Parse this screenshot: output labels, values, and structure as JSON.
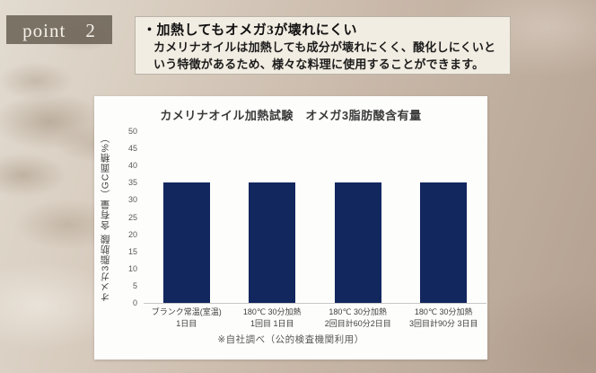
{
  "badge": {
    "label": "point　2"
  },
  "header": {
    "heading": "・加熱してもオメガ3が壊れにくい",
    "body": "カメリナオイルは加熱しても成分が壊れにくく、酸化しにくいという特徴があるため、様々な料理に使用することができます。"
  },
  "chart_data": {
    "type": "bar",
    "title": "カメリナオイル加熱試験　オメガ3脂肪酸含有量",
    "categories": [
      "ブランク常温(室温)\n1日目",
      "180℃ 30分加熱\n1回目 1日目",
      "180℃ 30分加熱\n2回目計60分2日目",
      "180℃ 30分加熱\n3回目計90分 3日目"
    ],
    "values": [
      35,
      35,
      35,
      35
    ],
    "xlabel": "",
    "ylabel": "オメガ3脂肪酸 含有量（GC面積%）",
    "ylim": [
      0,
      50
    ],
    "ytick_step": 5,
    "grid": false,
    "legend": null,
    "note": "※自社調べ（公的検査機関利用）"
  },
  "colors": {
    "bar": "#12275e",
    "badge_bg": "#685e52",
    "header_box_bg": "#f2ede2",
    "panel_bg": "#fdfdfc",
    "background_base": "#c9b8a9"
  }
}
